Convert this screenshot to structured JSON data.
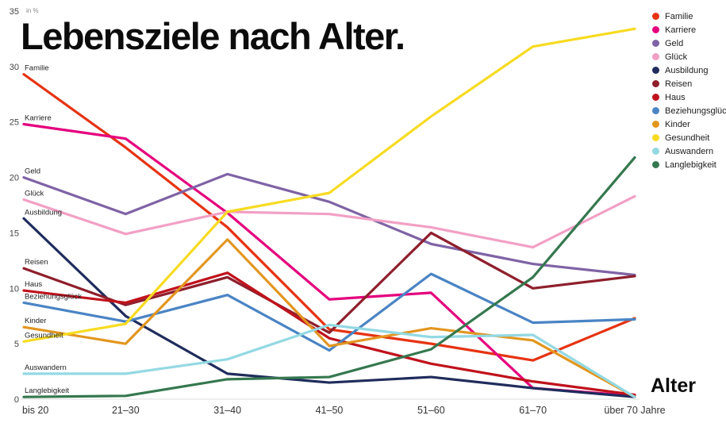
{
  "title": "Lebensziele nach Alter.",
  "chart_data": {
    "type": "line",
    "title": "Lebensziele nach Alter.",
    "xlabel": "Alter",
    "y_unit": "in %",
    "ylim": [
      0,
      35
    ],
    "yticks": [
      0,
      5,
      10,
      15,
      20,
      25,
      30,
      35
    ],
    "grid": false,
    "legend_position": "top-right",
    "categories": [
      "bis 20",
      "21–30",
      "31–40",
      "41–50",
      "51–60",
      "61–70",
      "über 70 Jahre"
    ],
    "series": [
      {
        "name": "Familie",
        "color": "#e63312",
        "values": [
          29.3,
          22.7,
          15.5,
          6.3,
          5.0,
          3.5,
          7.3
        ]
      },
      {
        "name": "Karriere",
        "color": "#e5007d",
        "values": [
          24.8,
          23.5,
          16.8,
          9.0,
          9.6,
          1.0,
          0.3
        ]
      },
      {
        "name": "Geld",
        "color": "#7f63a5",
        "values": [
          20.0,
          16.7,
          20.3,
          17.8,
          14.0,
          12.2,
          11.2
        ]
      },
      {
        "name": "Glück",
        "color": "#f2a0c5",
        "values": [
          18.0,
          14.9,
          16.9,
          16.7,
          15.5,
          13.7,
          18.3
        ]
      },
      {
        "name": "Ausbildung",
        "color": "#1f2c5c",
        "values": [
          16.3,
          7.5,
          2.3,
          1.5,
          2.0,
          1.0,
          0.2
        ]
      },
      {
        "name": "Reisen",
        "color": "#8e1f2c",
        "values": [
          11.8,
          8.5,
          11.0,
          6.0,
          15.0,
          10.0,
          11.1
        ]
      },
      {
        "name": "Haus",
        "color": "#c0121c",
        "values": [
          9.8,
          8.7,
          11.4,
          5.5,
          3.2,
          1.6,
          0.4
        ]
      },
      {
        "name": "Beziehungsglück",
        "color": "#4a84c4",
        "values": [
          8.7,
          7.0,
          9.4,
          4.4,
          11.3,
          6.9,
          7.2
        ]
      },
      {
        "name": "Kinder",
        "color": "#e2961f",
        "values": [
          6.5,
          5.0,
          14.4,
          4.8,
          6.4,
          5.3,
          0.2
        ]
      },
      {
        "name": "Gesundheit",
        "color": "#f7db21",
        "values": [
          5.2,
          6.8,
          16.9,
          18.6,
          25.5,
          31.8,
          33.4
        ]
      },
      {
        "name": "Auswandern",
        "color": "#93d9e3",
        "values": [
          2.3,
          2.3,
          3.6,
          6.7,
          5.6,
          5.8,
          0.2
        ]
      },
      {
        "name": "Langlebigkeit",
        "color": "#35784f",
        "values": [
          0.2,
          0.3,
          1.8,
          2.0,
          4.5,
          11.0,
          21.8
        ]
      }
    ]
  }
}
